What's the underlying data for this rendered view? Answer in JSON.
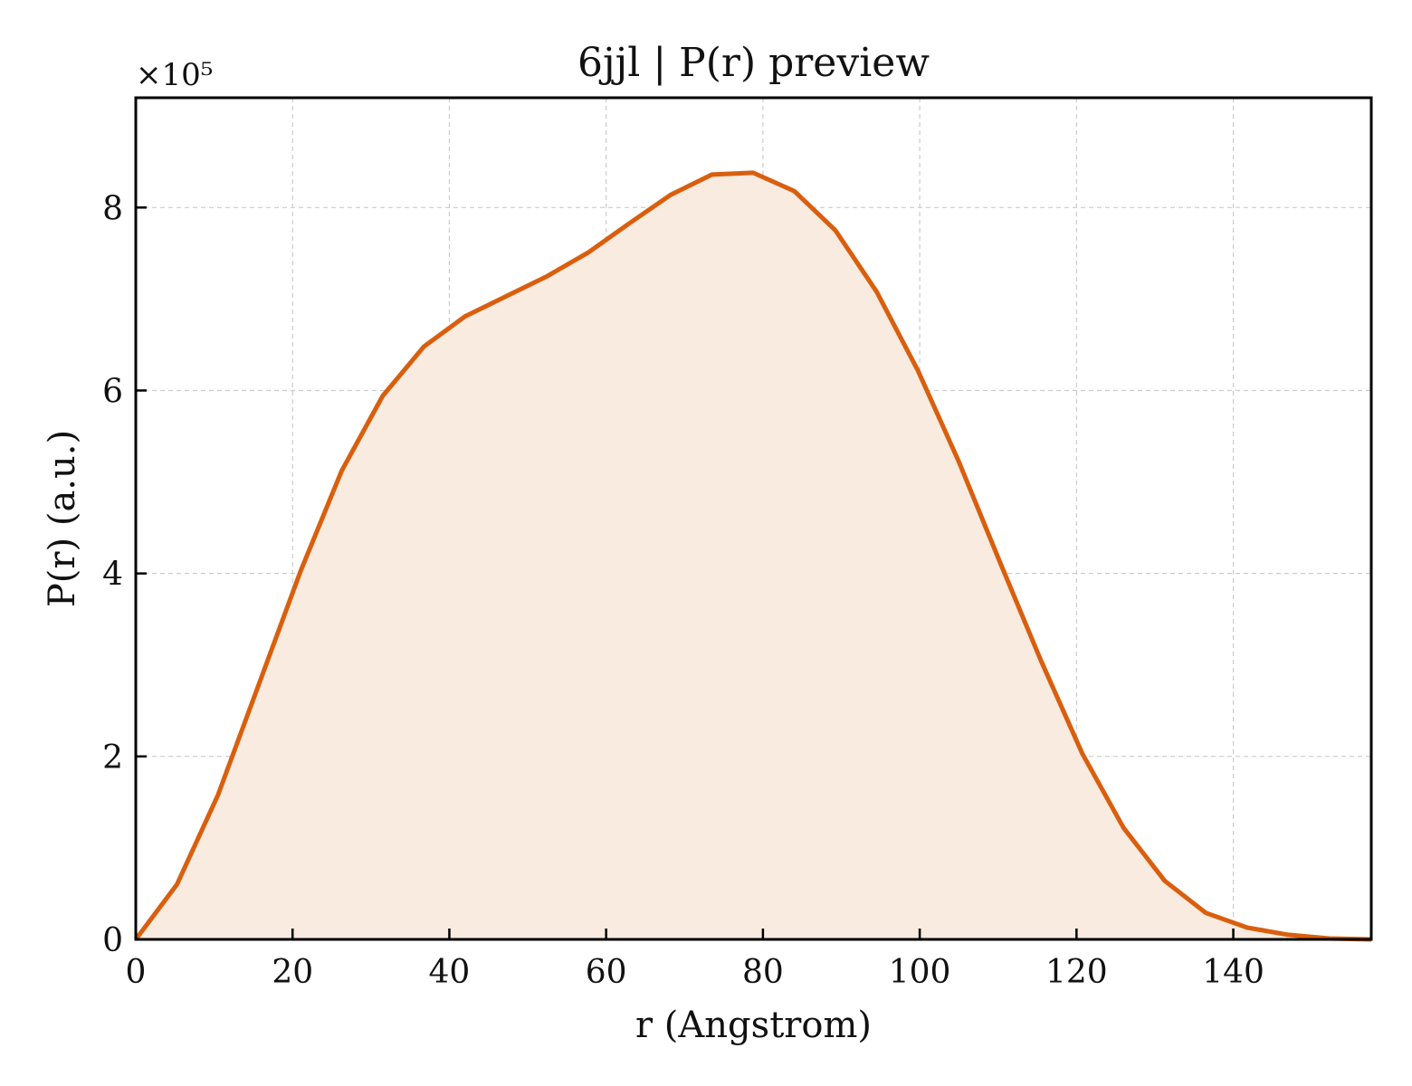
{
  "chart_data": {
    "type": "area",
    "title": "6jjl | P(r) preview",
    "xlabel": "r (Angstrom)",
    "ylabel": "P(r) (a.u.)",
    "y_scale_label": "×10⁵",
    "y_scale_factor": 100000,
    "xlim": [
      0,
      157.6
    ],
    "ylim": [
      0,
      920000
    ],
    "x_ticks": [
      0,
      20,
      40,
      60,
      80,
      100,
      120,
      140
    ],
    "y_ticks": [
      0,
      2,
      4,
      6,
      8
    ],
    "grid": true,
    "line_color": "#d95f0e",
    "fill_color": "#f9ebe0",
    "series": [
      {
        "x": [
          0,
          5.25,
          10.5,
          15.75,
          21.0,
          26.25,
          31.5,
          36.75,
          42.0,
          47.25,
          52.5,
          57.75,
          63.0,
          68.25,
          73.5,
          78.75,
          84.0,
          89.25,
          94.5,
          99.75,
          105.0,
          110.25,
          115.5,
          120.75,
          126.0,
          131.25,
          136.5,
          141.75,
          147.0,
          152.25,
          157.6
        ],
        "y": [
          0,
          60000,
          158000,
          280000,
          402000,
          512000,
          594000,
          648000,
          681000,
          703000,
          725000,
          751000,
          783000,
          814000,
          836000,
          838000,
          818000,
          775000,
          708000,
          622000,
          522000,
          412000,
          304000,
          203000,
          122000,
          64000,
          29000,
          13000,
          5000,
          1000,
          0
        ]
      }
    ]
  }
}
